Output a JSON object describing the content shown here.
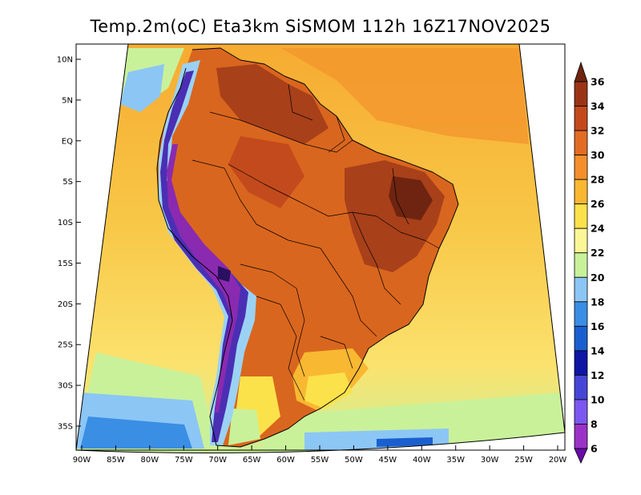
{
  "title": "Temp.2m(oC) Eta3km SiSMOM 112h 16Z17NOV2025",
  "map": {
    "variable": "2 m temperature",
    "units": "oC",
    "lat_range": [
      -38,
      12
    ],
    "lon_range": [
      -91,
      -20
    ],
    "lat_ticks": [
      "10N",
      "5N",
      "EQ",
      "5S",
      "10S",
      "15S",
      "20S",
      "25S",
      "30S",
      "35S"
    ],
    "lon_ticks": [
      "90W",
      "85W",
      "80W",
      "75W",
      "70W",
      "65W",
      "60W",
      "55W",
      "50W",
      "45W",
      "40W",
      "35W",
      "30W",
      "25W",
      "20W"
    ]
  },
  "colorbar": {
    "levels": [
      "6",
      "8",
      "10",
      "12",
      "14",
      "16",
      "18",
      "20",
      "22",
      "24",
      "26",
      "28",
      "30",
      "32",
      "34",
      "36"
    ],
    "colors": [
      "#6a0aa8",
      "#9b32c8",
      "#7c58f0",
      "#4646d6",
      "#0f16a4",
      "#1a5fd0",
      "#3a8ee4",
      "#8cc6f5",
      "#c9f19a",
      "#fbf696",
      "#fce24a",
      "#f9b832",
      "#f3902c",
      "#e26c24",
      "#c34a1c",
      "#9b3416",
      "#6e2410"
    ]
  },
  "palette": {
    "ocean_north": "#f6aa30",
    "ocean_mid": "#f8c848",
    "ocean_south": "#fbe26e",
    "land_hot": "#d9661e",
    "land_very_hot": "#a8401a",
    "andes": "#4a2fb4",
    "andes_core": "#8a2ab0",
    "coastal_cold": "#9bd2f4"
  }
}
